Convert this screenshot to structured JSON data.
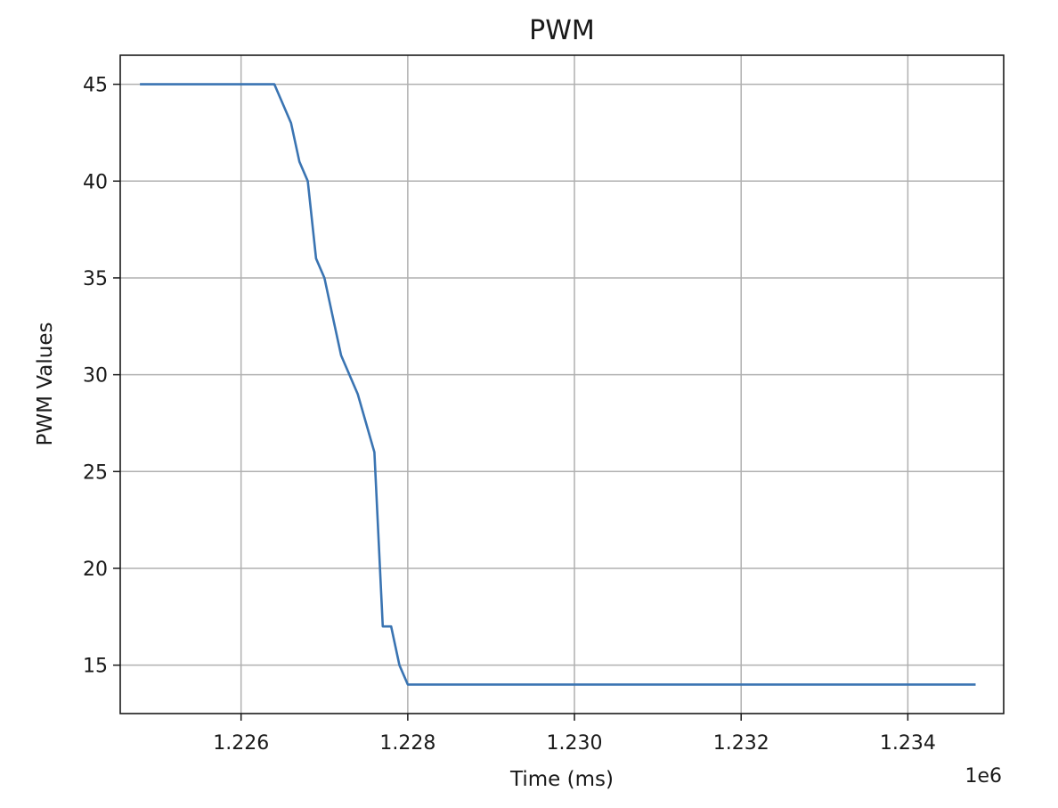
{
  "chart_data": {
    "type": "line",
    "title": "PWM",
    "xlabel": "Time (ms)",
    "ylabel": "PWM Values",
    "x_offset_label": "1e6",
    "x_scale": 1000000,
    "xlim": [
      1.22455,
      1.23515
    ],
    "ylim": [
      12.5,
      46.5
    ],
    "x_ticks": [
      1.226,
      1.228,
      1.23,
      1.232,
      1.234
    ],
    "x_tick_labels": [
      "1.226",
      "1.228",
      "1.230",
      "1.232",
      "1.234"
    ],
    "y_ticks": [
      15,
      20,
      25,
      30,
      35,
      40,
      45
    ],
    "y_tick_labels": [
      "15",
      "20",
      "25",
      "30",
      "35",
      "40",
      "45"
    ],
    "grid": true,
    "colors": {
      "series": "#3a74b2",
      "grid": "#b0b0b0",
      "axis": "#1a1a1a"
    },
    "series": [
      {
        "x": [
          1.2248,
          1.2264,
          1.2266,
          1.2267,
          1.2268,
          1.2269,
          1.227,
          1.2271,
          1.2272,
          1.2274,
          1.2276,
          1.2277,
          1.2278,
          1.2279,
          1.228,
          1.2348
        ],
        "y": [
          45,
          45,
          43,
          41,
          40,
          36,
          35,
          33,
          31,
          29,
          26,
          17,
          17,
          15,
          14,
          14
        ]
      }
    ]
  }
}
